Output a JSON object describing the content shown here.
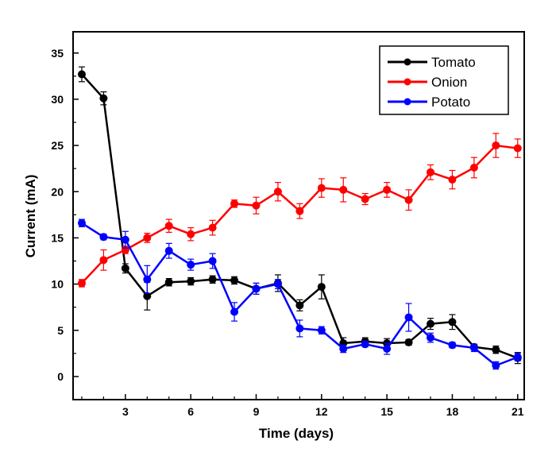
{
  "chart_data": {
    "type": "line",
    "title": "",
    "xlabel": "Time (days)",
    "ylabel": "Current (mA)",
    "xlim": [
      0.6,
      21.3
    ],
    "ylim": [
      -2.5,
      37.3
    ],
    "xticks": [
      3,
      6,
      9,
      12,
      15,
      18,
      21
    ],
    "yticks": [
      0,
      5,
      10,
      15,
      20,
      25,
      30,
      35
    ],
    "grid": false,
    "legend_position": "top-right",
    "x": [
      1,
      2,
      3,
      4,
      5,
      6,
      7,
      8,
      9,
      10,
      11,
      12,
      13,
      14,
      15,
      16,
      17,
      18,
      19,
      20,
      21
    ],
    "series": [
      {
        "name": "Tomato",
        "color": "#000000",
        "values": [
          32.7,
          30.1,
          11.7,
          8.7,
          10.2,
          10.3,
          10.5,
          10.4,
          9.5,
          10.1,
          7.7,
          9.7,
          3.6,
          3.8,
          3.6,
          3.7,
          5.7,
          5.9,
          3.2,
          2.9,
          2.0
        ],
        "errors": [
          0.8,
          0.7,
          0.5,
          1.5,
          0.4,
          0.4,
          0.4,
          0.4,
          0.6,
          0.9,
          0.6,
          1.3,
          0.6,
          0.4,
          0.5,
          0.3,
          0.6,
          0.8,
          0.3,
          0.4,
          0.6
        ]
      },
      {
        "name": "Onion",
        "color": "#ff0000",
        "values": [
          10.1,
          12.6,
          13.7,
          15.0,
          16.3,
          15.4,
          16.1,
          18.7,
          18.5,
          20.0,
          17.9,
          20.4,
          20.2,
          19.2,
          20.2,
          19.1,
          22.1,
          21.3,
          22.6,
          25.0,
          24.7
        ],
        "errors": [
          0.4,
          1.1,
          0.4,
          0.5,
          0.7,
          0.7,
          0.8,
          0.4,
          0.9,
          1.0,
          0.8,
          1.0,
          1.3,
          0.6,
          0.8,
          1.1,
          0.8,
          1.0,
          1.1,
          1.3,
          1.0
        ]
      },
      {
        "name": "Potato",
        "color": "#0000ff",
        "values": [
          16.6,
          15.1,
          14.8,
          10.5,
          13.6,
          12.1,
          12.5,
          7.0,
          9.5,
          10.0,
          5.2,
          5.0,
          3.0,
          3.5,
          3.0,
          6.4,
          4.2,
          3.4,
          3.1,
          1.2,
          2.1
        ],
        "errors": [
          0.4,
          0.3,
          0.9,
          1.5,
          0.8,
          0.6,
          0.8,
          1.0,
          0.6,
          0.5,
          0.9,
          0.4,
          0.4,
          0.3,
          0.6,
          1.5,
          0.5,
          0.3,
          0.4,
          0.4,
          0.4
        ]
      }
    ]
  }
}
